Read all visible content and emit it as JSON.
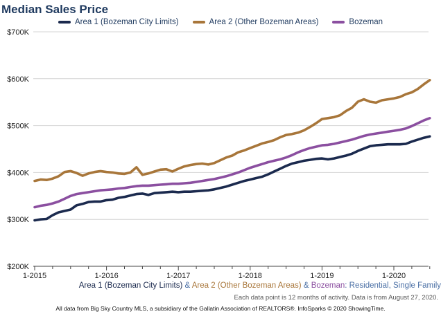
{
  "header": {
    "title": "Median Sales Price"
  },
  "footer": {
    "legend_parts": [
      "Area 1 (Bozeman City Limits)",
      " & ",
      "Area 2 (Other Bozeman Areas)",
      " & ",
      "Bozeman",
      ": Residential, Single Family"
    ],
    "note": "Each data point is 12 months of activity. Data is from August 27, 2020.",
    "source": "All data from Big Sky Country MLS, a subsidiary of the Gallatin Association of REALTORS®. InfoSparks © 2020 ShowingTime."
  },
  "chart_data": {
    "type": "line",
    "title": "Median Sales Price",
    "xlabel": "",
    "ylabel": "",
    "x_range": [
      "2015-01",
      "2020-07"
    ],
    "x_ticks": [
      "1-2015",
      "1-2016",
      "1-2017",
      "1-2018",
      "1-2019",
      "1-2020"
    ],
    "ylim": [
      200000,
      700000
    ],
    "y_ticks": [
      "$200K",
      "$300K",
      "$400K",
      "$500K",
      "$600K",
      "$700K"
    ],
    "grid": true,
    "legend_position": "top",
    "series": [
      {
        "name": "Area 1 (Bozeman City Limits)",
        "color": "#1b2a4e",
        "values": [
          298000,
          300000,
          301000,
          309000,
          315000,
          318000,
          321000,
          330000,
          333000,
          337000,
          338000,
          338000,
          341000,
          342000,
          346000,
          348000,
          351000,
          354000,
          355000,
          352000,
          356000,
          357000,
          358000,
          359000,
          358000,
          359000,
          359000,
          360000,
          361000,
          362000,
          364000,
          367000,
          370000,
          374000,
          378000,
          382000,
          385000,
          388000,
          391000,
          396000,
          402000,
          408000,
          414000,
          419000,
          422000,
          425000,
          427000,
          429000,
          430000,
          428000,
          430000,
          433000,
          436000,
          440000,
          446000,
          451000,
          456000,
          458000,
          459000,
          460000,
          460000,
          460000,
          461000,
          466000,
          470000,
          474000,
          477000
        ]
      },
      {
        "name": "Area 2 (Other Bozeman Areas)",
        "color": "#a8763a",
        "values": [
          382000,
          385000,
          384000,
          387000,
          392000,
          401000,
          403000,
          399000,
          393000,
          398000,
          401000,
          403000,
          401000,
          400000,
          398000,
          397000,
          400000,
          411000,
          395000,
          398000,
          402000,
          406000,
          407000,
          402000,
          408000,
          413000,
          416000,
          418000,
          419000,
          417000,
          420000,
          426000,
          432000,
          436000,
          443000,
          447000,
          452000,
          457000,
          462000,
          465000,
          469000,
          475000,
          480000,
          482000,
          485000,
          490000,
          497000,
          505000,
          514000,
          516000,
          518000,
          522000,
          531000,
          538000,
          551000,
          556000,
          551000,
          549000,
          554000,
          556000,
          558000,
          561000,
          567000,
          571000,
          578000,
          588000,
          597000
        ]
      },
      {
        "name": "Bozeman",
        "color": "#8b4fa0",
        "values": [
          326000,
          329000,
          331000,
          334000,
          338000,
          344000,
          350000,
          354000,
          356000,
          358000,
          360000,
          362000,
          363000,
          364000,
          366000,
          367000,
          369000,
          371000,
          372000,
          372000,
          373000,
          374000,
          375000,
          376000,
          376000,
          377000,
          378000,
          380000,
          382000,
          384000,
          386000,
          389000,
          392000,
          396000,
          400000,
          405000,
          410000,
          414000,
          418000,
          422000,
          425000,
          428000,
          432000,
          437000,
          443000,
          448000,
          452000,
          455000,
          458000,
          459000,
          461000,
          464000,
          467000,
          470000,
          474000,
          478000,
          481000,
          483000,
          485000,
          487000,
          489000,
          491000,
          494000,
          499000,
          505000,
          511000,
          516000
        ]
      }
    ]
  }
}
